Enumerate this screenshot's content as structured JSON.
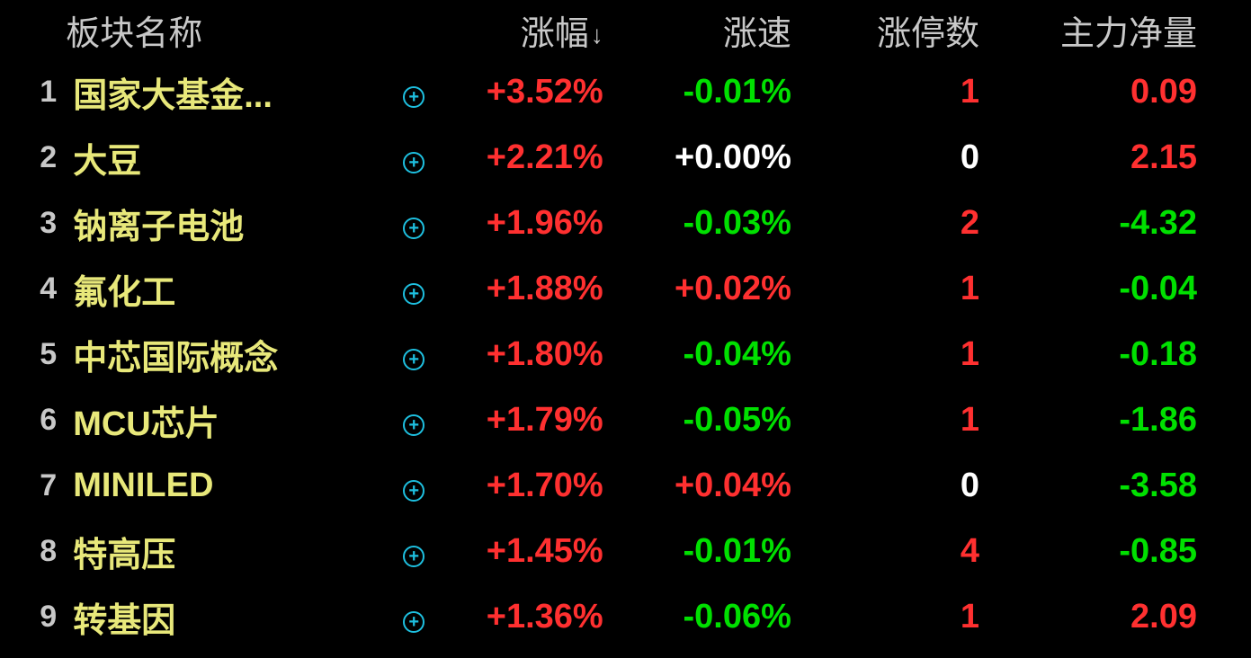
{
  "colors": {
    "background": "#000000",
    "header_text": "#c8c8c8",
    "rank_text": "#c8c8c8",
    "name_text": "#e8e87a",
    "positive": "#ff3030",
    "negative": "#00e000",
    "neutral": "#ffffff",
    "expand_icon": "#1ec0e0"
  },
  "typography": {
    "header_fontsize": 38,
    "cell_fontsize": 38,
    "rank_fontsize": 34,
    "font_family": "Microsoft YaHei"
  },
  "table": {
    "type": "table",
    "sort_column": "change_pct",
    "sort_direction": "desc",
    "sort_arrow": "↓",
    "columns": {
      "rank": "",
      "name": "板块名称",
      "change_pct": "涨幅",
      "speed_pct": "涨速",
      "limit_up_count": "涨停数",
      "main_net_flow": "主力净量"
    },
    "rows": [
      {
        "rank": "1",
        "name": "国家大基金...",
        "change_pct": {
          "text": "+3.52%",
          "color": "#ff3030"
        },
        "speed_pct": {
          "text": "-0.01%",
          "color": "#00e000"
        },
        "limit_up_count": {
          "text": "1",
          "color": "#ff3030"
        },
        "main_net_flow": {
          "text": "0.09",
          "color": "#ff3030"
        }
      },
      {
        "rank": "2",
        "name": "大豆",
        "change_pct": {
          "text": "+2.21%",
          "color": "#ff3030"
        },
        "speed_pct": {
          "text": "+0.00%",
          "color": "#ffffff"
        },
        "limit_up_count": {
          "text": "0",
          "color": "#ffffff"
        },
        "main_net_flow": {
          "text": "2.15",
          "color": "#ff3030"
        }
      },
      {
        "rank": "3",
        "name": "钠离子电池",
        "change_pct": {
          "text": "+1.96%",
          "color": "#ff3030"
        },
        "speed_pct": {
          "text": "-0.03%",
          "color": "#00e000"
        },
        "limit_up_count": {
          "text": "2",
          "color": "#ff3030"
        },
        "main_net_flow": {
          "text": "-4.32",
          "color": "#00e000"
        }
      },
      {
        "rank": "4",
        "name": "氟化工",
        "change_pct": {
          "text": "+1.88%",
          "color": "#ff3030"
        },
        "speed_pct": {
          "text": "+0.02%",
          "color": "#ff3030"
        },
        "limit_up_count": {
          "text": "1",
          "color": "#ff3030"
        },
        "main_net_flow": {
          "text": "-0.04",
          "color": "#00e000"
        }
      },
      {
        "rank": "5",
        "name": "中芯国际概念",
        "change_pct": {
          "text": "+1.80%",
          "color": "#ff3030"
        },
        "speed_pct": {
          "text": "-0.04%",
          "color": "#00e000"
        },
        "limit_up_count": {
          "text": "1",
          "color": "#ff3030"
        },
        "main_net_flow": {
          "text": "-0.18",
          "color": "#00e000"
        }
      },
      {
        "rank": "6",
        "name": "MCU芯片",
        "change_pct": {
          "text": "+1.79%",
          "color": "#ff3030"
        },
        "speed_pct": {
          "text": "-0.05%",
          "color": "#00e000"
        },
        "limit_up_count": {
          "text": "1",
          "color": "#ff3030"
        },
        "main_net_flow": {
          "text": "-1.86",
          "color": "#00e000"
        }
      },
      {
        "rank": "7",
        "name": "MINILED",
        "change_pct": {
          "text": "+1.70%",
          "color": "#ff3030"
        },
        "speed_pct": {
          "text": "+0.04%",
          "color": "#ff3030"
        },
        "limit_up_count": {
          "text": "0",
          "color": "#ffffff"
        },
        "main_net_flow": {
          "text": "-3.58",
          "color": "#00e000"
        }
      },
      {
        "rank": "8",
        "name": "特高压",
        "change_pct": {
          "text": "+1.45%",
          "color": "#ff3030"
        },
        "speed_pct": {
          "text": "-0.01%",
          "color": "#00e000"
        },
        "limit_up_count": {
          "text": "4",
          "color": "#ff3030"
        },
        "main_net_flow": {
          "text": "-0.85",
          "color": "#00e000"
        }
      },
      {
        "rank": "9",
        "name": "转基因",
        "change_pct": {
          "text": "+1.36%",
          "color": "#ff3030"
        },
        "speed_pct": {
          "text": "-0.06%",
          "color": "#00e000"
        },
        "limit_up_count": {
          "text": "1",
          "color": "#ff3030"
        },
        "main_net_flow": {
          "text": "2.09",
          "color": "#ff3030"
        }
      }
    ]
  }
}
